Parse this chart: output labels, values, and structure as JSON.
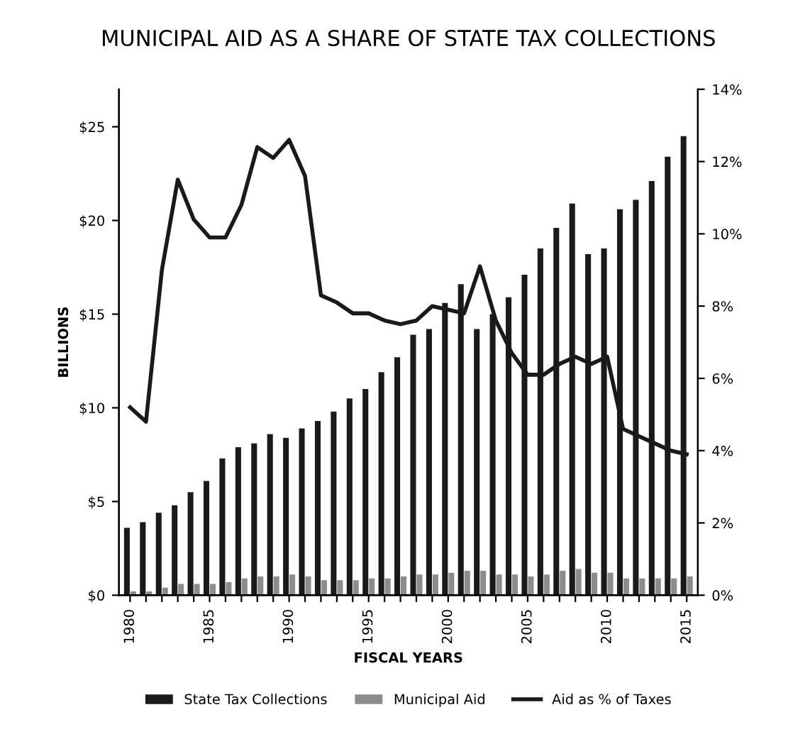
{
  "chart_data": {
    "type": "bar",
    "title": "MUNICIPAL AID AS A SHARE OF STATE TAX COLLECTIONS",
    "xlabel": "FISCAL YEARS",
    "ylabel": "BILLIONS",
    "categories": [
      "1980",
      null,
      null,
      null,
      null,
      "1985",
      null,
      null,
      null,
      null,
      "1990",
      null,
      null,
      null,
      null,
      "1995",
      null,
      null,
      null,
      null,
      "2000",
      null,
      null,
      null,
      null,
      "2005",
      null,
      null,
      null,
      null,
      "2010",
      null,
      null,
      null,
      null,
      "2015"
    ],
    "series": [
      {
        "name": "State Tax Collections",
        "color": "#1a1a1a",
        "values": [
          3.6,
          3.9,
          4.4,
          4.8,
          5.5,
          6.1,
          7.3,
          7.9,
          8.1,
          8.6,
          8.4,
          8.9,
          9.3,
          9.8,
          10.5,
          11.0,
          11.9,
          12.7,
          13.9,
          14.2,
          15.6,
          16.6,
          14.2,
          15.0,
          15.9,
          17.1,
          18.5,
          19.6,
          20.9,
          18.2,
          18.5,
          20.6,
          21.1,
          22.1,
          23.4,
          24.5
        ]
      },
      {
        "name": "Municipal Aid",
        "color": "#8c8c8c",
        "values": [
          0.2,
          0.2,
          0.4,
          0.6,
          0.6,
          0.6,
          0.7,
          0.9,
          1.0,
          1.0,
          1.1,
          1.0,
          0.8,
          0.8,
          0.8,
          0.9,
          0.9,
          1.0,
          1.1,
          1.1,
          1.2,
          1.3,
          1.3,
          1.1,
          1.1,
          1.0,
          1.1,
          1.3,
          1.4,
          1.2,
          1.2,
          0.9,
          0.9,
          0.9,
          0.9,
          1.0
        ]
      },
      {
        "name": "Aid as % of Taxes",
        "type": "line",
        "axis": "y2",
        "color": "#1a1a1a",
        "values": [
          5.2,
          4.8,
          9.0,
          11.5,
          10.4,
          9.9,
          9.9,
          10.8,
          12.4,
          12.1,
          12.6,
          11.6,
          8.3,
          8.1,
          7.8,
          7.8,
          7.6,
          7.5,
          7.6,
          8.0,
          7.9,
          7.8,
          9.1,
          7.6,
          6.7,
          6.1,
          6.1,
          6.4,
          6.6,
          6.4,
          6.6,
          4.6,
          4.4,
          4.2,
          4.0,
          3.9
        ]
      }
    ],
    "ylim": [
      0,
      27
    ],
    "yticks": [
      {
        "value": 0,
        "label": "$0"
      },
      {
        "value": 5,
        "label": "$5"
      },
      {
        "value": 10,
        "label": "$10"
      },
      {
        "value": 15,
        "label": "$15"
      },
      {
        "value": 20,
        "label": "$20"
      },
      {
        "value": 25,
        "label": "$25"
      }
    ],
    "y2lim": [
      0,
      14
    ],
    "y2ticks": [
      {
        "value": 0,
        "label": "0%"
      },
      {
        "value": 2,
        "label": "2%"
      },
      {
        "value": 4,
        "label": "4%"
      },
      {
        "value": 6,
        "label": "6%"
      },
      {
        "value": 8,
        "label": "8%"
      },
      {
        "value": 10,
        "label": "10%"
      },
      {
        "value": 12,
        "label": "12%"
      },
      {
        "value": 14,
        "label": "14%"
      }
    ],
    "grid": false,
    "legend": "bottom",
    "marker": "none",
    "line_style": "solid"
  }
}
